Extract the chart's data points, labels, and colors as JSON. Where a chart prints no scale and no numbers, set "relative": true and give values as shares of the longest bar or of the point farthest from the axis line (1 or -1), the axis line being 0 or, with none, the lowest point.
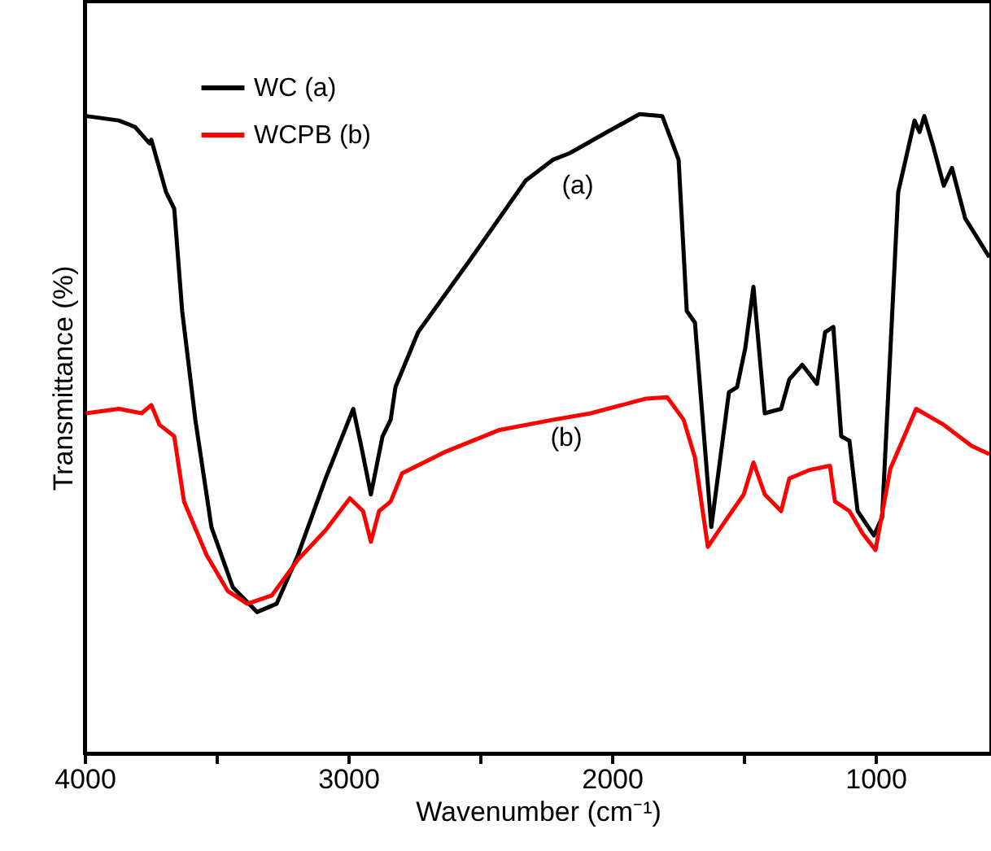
{
  "chart_data": {
    "type": "line",
    "xlabel": "Wavenumber (cm⁻¹)",
    "ylabel": "Transmittance (%)",
    "relative": true,
    "xlim": [
      4000,
      562
    ],
    "xticks": [
      4000,
      {
        "value": 3500,
        "label": null
      },
      3000,
      {
        "value": 2500,
        "label": null
      },
      2000,
      {
        "value": 1500,
        "label": null
      },
      1000
    ],
    "grid": false,
    "legend": "top left",
    "marker": "none",
    "line_style": "solid",
    "series": [
      {
        "name": "WC (a)",
        "color": "#000000",
        "x": [
          3994,
          3870,
          3809,
          3753,
          3747,
          3691,
          3660,
          3630,
          3580,
          3519,
          3438,
          3346,
          3272,
          3191,
          3086,
          2981,
          2951,
          2914,
          2870,
          2839,
          2821,
          2735,
          2531,
          2327,
          2222,
          2160,
          2018,
          1895,
          1809,
          1747,
          1716,
          1685,
          1623,
          1556,
          1525,
          1494,
          1463,
          1420,
          1358,
          1327,
          1278,
          1222,
          1191,
          1160,
          1130,
          1099,
          1068,
          1006,
          975,
          914,
          852,
          833,
          815,
          784,
          741,
          710,
          660,
          568
        ],
        "values": [
          0.997,
          0.99,
          0.98,
          0.954,
          0.96,
          0.878,
          0.852,
          0.692,
          0.522,
          0.354,
          0.26,
          0.221,
          0.234,
          0.31,
          0.43,
          0.539,
          0.481,
          0.405,
          0.496,
          0.522,
          0.573,
          0.659,
          0.776,
          0.896,
          0.929,
          0.939,
          0.972,
          1.0,
          0.997,
          0.929,
          0.692,
          0.674,
          0.354,
          0.565,
          0.573,
          0.634,
          0.73,
          0.532,
          0.539,
          0.585,
          0.608,
          0.578,
          0.659,
          0.667,
          0.496,
          0.489,
          0.379,
          0.341,
          0.369,
          0.878,
          0.99,
          0.972,
          0.997,
          0.954,
          0.888,
          0.916,
          0.837,
          0.776
        ]
      },
      {
        "name": "WCPB (b)",
        "color": "#ff0000",
        "x": [
          3994,
          3870,
          3784,
          3747,
          3716,
          3660,
          3623,
          3537,
          3457,
          3383,
          3290,
          3191,
          3086,
          2994,
          2944,
          2914,
          2883,
          2839,
          2796,
          2636,
          2426,
          2222,
          2080,
          1870,
          1790,
          1728,
          1685,
          1636,
          1574,
          1500,
          1463,
          1420,
          1358,
          1327,
          1253,
          1173,
          1154,
          1099,
          1049,
          1000,
          944,
          846,
          741,
          636,
          568
        ],
        "values": [
          0.532,
          0.539,
          0.532,
          0.545,
          0.514,
          0.496,
          0.394,
          0.31,
          0.254,
          0.234,
          0.247,
          0.303,
          0.349,
          0.399,
          0.379,
          0.331,
          0.379,
          0.394,
          0.438,
          0.471,
          0.506,
          0.522,
          0.532,
          0.555,
          0.557,
          0.522,
          0.463,
          0.323,
          0.361,
          0.405,
          0.455,
          0.405,
          0.379,
          0.43,
          0.443,
          0.45,
          0.394,
          0.379,
          0.344,
          0.318,
          0.445,
          0.539,
          0.514,
          0.481,
          0.468
        ]
      }
    ],
    "annotations": [
      "(a)",
      "(b)"
    ]
  }
}
